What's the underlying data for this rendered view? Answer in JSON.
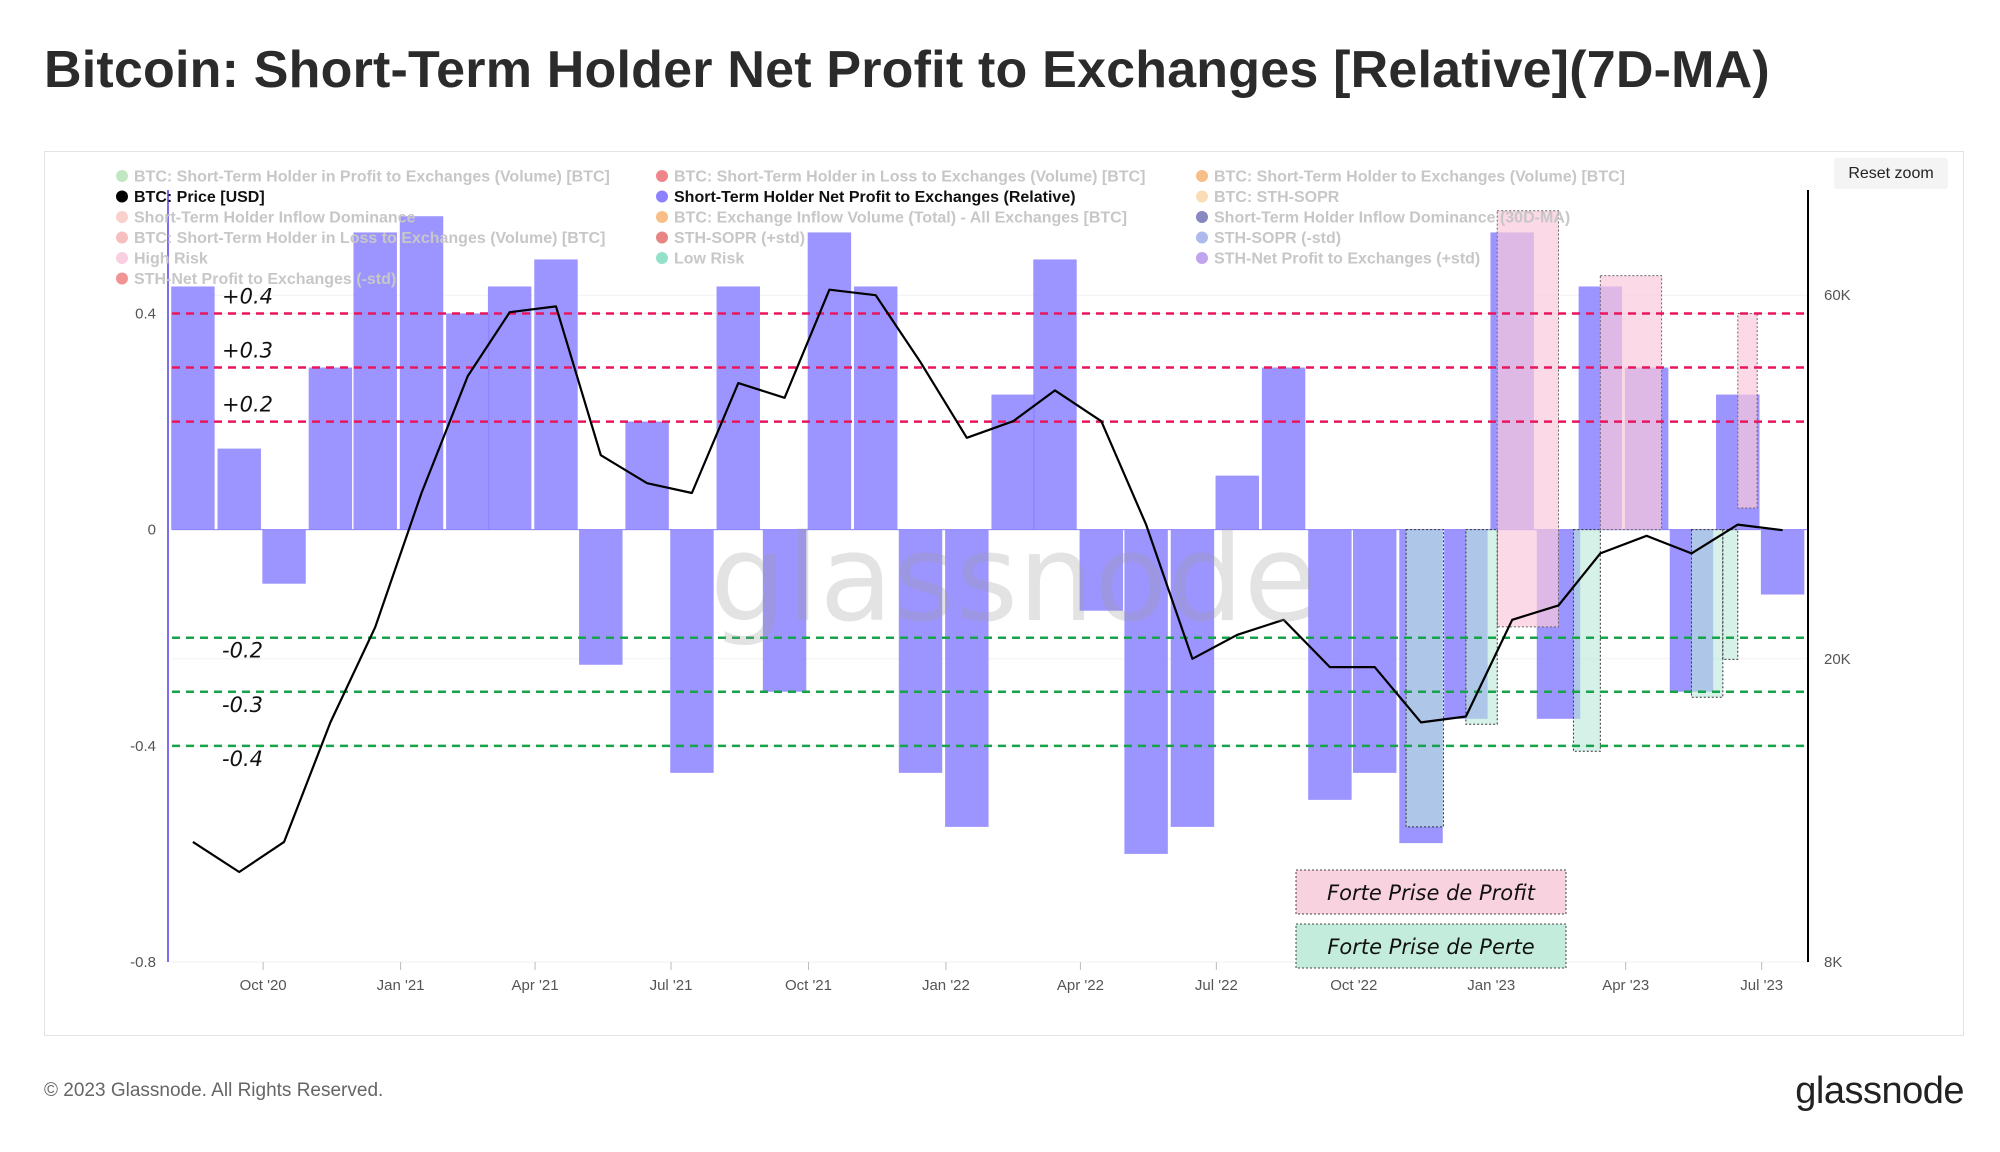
{
  "title": "Bitcoin: Short-Term Holder Net Profit to Exchanges [Relative](7D-MA)",
  "reset_zoom_label": "Reset zoom",
  "footer": {
    "copyright": "© 2023 Glassnode. All Rights Reserved.",
    "logo": "glassnode"
  },
  "watermark": "glassnode",
  "legend": [
    {
      "label": "BTC: Short-Term Holder in Profit to Exchanges (Volume) [BTC]",
      "color": "#8fd18f",
      "active": false
    },
    {
      "label": "BTC: Short-Term Holder in Loss to Exchanges (Volume) [BTC]",
      "color": "#e0202a",
      "active": false
    },
    {
      "label": "BTC: Short-Term Holder to Exchanges (Volume) [BTC]",
      "color": "#f08a24",
      "active": false
    },
    {
      "label": "BTC: Price [USD]",
      "color": "#000000",
      "active": true
    },
    {
      "label": "Short-Term Holder Net Profit to Exchanges (Relative)",
      "color": "#8c82ff",
      "active": true
    },
    {
      "label": "BTC: STH-SOPR",
      "color": "#f5c07a",
      "active": false
    },
    {
      "label": "Short-Term Holder Inflow Dominance",
      "color": "#f4a9a0",
      "active": false
    },
    {
      "label": "BTC: Exchange Inflow Volume (Total) - All Exchanges [BTC]",
      "color": "#f08a24",
      "active": false
    },
    {
      "label": "Short-Term Holder Inflow Dominance (30D-MA)",
      "color": "#24248f",
      "active": false
    },
    {
      "label": "BTC: Short-Term Holder in Loss to Exchanges (Volume) [BTC]",
      "color": "#ee8a8a",
      "active": false
    },
    {
      "label": "STH-SOPR (+std)",
      "color": "#d42020",
      "active": false
    },
    {
      "label": "STH-SOPR (-std)",
      "color": "#6b82e0",
      "active": false
    },
    {
      "label": "High Risk",
      "color": "#f4a8c8",
      "active": false
    },
    {
      "label": "Low Risk",
      "color": "#3cc8a0",
      "active": false
    },
    {
      "label": "STH-Net Profit to Exchanges (+std)",
      "color": "#8c5ae0",
      "active": false
    },
    {
      "label": "STH-Net Profit to Exchanges (-std)",
      "color": "#e83a3a",
      "active": false
    }
  ],
  "annotations": {
    "profit_label": "Forte Prise de Profit",
    "loss_label": "Forte Prise de Perte",
    "levels": [
      {
        "value": 0.4,
        "label": "+0.4",
        "color": "#e8175d"
      },
      {
        "value": 0.3,
        "label": "+0.3",
        "color": "#e8175d"
      },
      {
        "value": 0.2,
        "label": "+0.2",
        "color": "#e8175d"
      },
      {
        "value": -0.2,
        "label": "-0.2",
        "color": "#16a34a"
      },
      {
        "value": -0.3,
        "label": "-0.3",
        "color": "#16a34a"
      },
      {
        "value": -0.4,
        "label": "-0.4",
        "color": "#16a34a"
      }
    ],
    "profit_color": "#f9c9dc",
    "loss_color": "#b9e8d8"
  },
  "chart_data": {
    "type": "bar",
    "x_axis": {
      "ticks": [
        "Oct '20",
        "Jan '21",
        "Apr '21",
        "Jul '21",
        "Oct '21",
        "Jan '22",
        "Apr '22",
        "Jul '22",
        "Oct '22",
        "Jan '23",
        "Apr '23",
        "Jul '23"
      ],
      "start": "2020-08-01",
      "end": "2023-08-01"
    },
    "y_left": {
      "ticks": [
        0.4,
        0,
        -0.4,
        -0.8
      ],
      "tick_labels": [
        "0.4",
        "0",
        "-0.4",
        "-0.8"
      ],
      "min": -0.8,
      "max": 0.61
    },
    "y_right": {
      "ticks": [
        8000,
        20000,
        60000
      ],
      "tick_labels": [
        "8K",
        "20K",
        "60K"
      ],
      "scale": "log",
      "min": 8000,
      "max": 80000
    },
    "series": [
      {
        "name": "Short-Term Holder Net Profit to Exchanges (Relative)",
        "type": "bar",
        "color": "#8c82ff",
        "dates": [
          "2020-08",
          "2020-09",
          "2020-10",
          "2020-11",
          "2020-12",
          "2021-01",
          "2021-02",
          "2021-03",
          "2021-04",
          "2021-05",
          "2021-06",
          "2021-07",
          "2021-08",
          "2021-09",
          "2021-10",
          "2021-11",
          "2021-12",
          "2022-01",
          "2022-02",
          "2022-03",
          "2022-04",
          "2022-05",
          "2022-06",
          "2022-07",
          "2022-08",
          "2022-09",
          "2022-10",
          "2022-11",
          "2022-12",
          "2023-01",
          "2023-02",
          "2023-03",
          "2023-04",
          "2023-05",
          "2023-06",
          "2023-07"
        ],
        "values": [
          0.45,
          0.15,
          -0.1,
          0.3,
          0.55,
          0.58,
          0.4,
          0.45,
          0.5,
          -0.25,
          0.2,
          -0.45,
          0.45,
          -0.3,
          0.55,
          0.45,
          -0.45,
          -0.55,
          0.25,
          0.5,
          -0.15,
          -0.6,
          -0.55,
          0.1,
          0.3,
          -0.5,
          -0.45,
          -0.58,
          -0.35,
          0.55,
          -0.35,
          0.45,
          0.3,
          -0.3,
          0.25,
          -0.12
        ]
      },
      {
        "name": "BTC: Price [USD]",
        "type": "line",
        "color": "#000000",
        "axis": "right",
        "dates": [
          "2020-08",
          "2020-09",
          "2020-10",
          "2020-11",
          "2020-12",
          "2021-01",
          "2021-02",
          "2021-03",
          "2021-04",
          "2021-05",
          "2021-06",
          "2021-07",
          "2021-08",
          "2021-09",
          "2021-10",
          "2021-11",
          "2021-12",
          "2022-01",
          "2022-02",
          "2022-03",
          "2022-04",
          "2022-05",
          "2022-06",
          "2022-07",
          "2022-08",
          "2022-09",
          "2022-10",
          "2022-11",
          "2022-12",
          "2023-01",
          "2023-02",
          "2023-03",
          "2023-04",
          "2023-05",
          "2023-06",
          "2023-07"
        ],
        "values": [
          11500,
          10500,
          11500,
          16500,
          22000,
          33000,
          47000,
          57000,
          58000,
          37000,
          34000,
          33000,
          46000,
          44000,
          61000,
          60000,
          49000,
          39000,
          41000,
          45000,
          41000,
          30000,
          20000,
          21500,
          22500,
          19500,
          19500,
          16500,
          16800,
          22500,
          23500,
          27500,
          29000,
          27500,
          30000,
          29500
        ]
      }
    ],
    "profit_zones": [
      {
        "start": "2023-01-05",
        "end": "2023-02-15",
        "top": 0.59,
        "bottom": -0.18
      },
      {
        "start": "2023-03-15",
        "end": "2023-04-25",
        "top": 0.47,
        "bottom": 0.0
      },
      {
        "start": "2023-06-15",
        "end": "2023-06-28",
        "top": 0.4,
        "bottom": 0.04
      }
    ],
    "loss_zones": [
      {
        "start": "2022-11-05",
        "end": "2022-11-30",
        "top": 0.0,
        "bottom": -0.55
      },
      {
        "start": "2022-12-15",
        "end": "2023-01-05",
        "top": 0.0,
        "bottom": -0.36
      },
      {
        "start": "2023-02-25",
        "end": "2023-03-15",
        "top": 0.0,
        "bottom": -0.41
      },
      {
        "start": "2023-05-15",
        "end": "2023-06-05",
        "top": 0.0,
        "bottom": -0.31
      },
      {
        "start": "2023-06-05",
        "end": "2023-06-15",
        "top": 0.0,
        "bottom": -0.24
      }
    ]
  }
}
